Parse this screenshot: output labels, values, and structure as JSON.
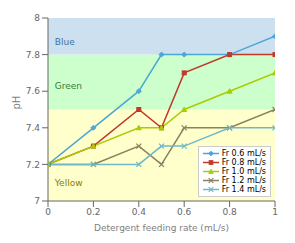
{
  "chart_data": {
    "type": "line",
    "xlabel": "Detergent feeding rate (mL/s)",
    "ylabel": "pH",
    "xlim": [
      0,
      1.0
    ],
    "ylim": [
      7.0,
      8.0
    ],
    "xticks": [
      0,
      0.2,
      0.4,
      0.6,
      0.8,
      1.0
    ],
    "yticks": [
      7.0,
      7.2,
      7.4,
      7.6,
      7.8,
      8.0
    ],
    "grid": false,
    "legend": "lower right",
    "x": [
      0,
      0.2,
      0.4,
      0.5,
      0.6,
      0.8,
      1.0
    ],
    "series": [
      {
        "name": "Fr 0.6 mL/s",
        "color": "#4da6d6",
        "marker": "diamond",
        "values": [
          7.2,
          7.4,
          7.6,
          7.8,
          7.8,
          7.8,
          7.9
        ]
      },
      {
        "name": "Fr 0.8 mL/s",
        "color": "#c0392b",
        "marker": "square",
        "values": [
          7.2,
          7.3,
          7.5,
          7.4,
          7.7,
          7.8,
          7.8
        ]
      },
      {
        "name": "Fr 1.0 mL/s",
        "color": "#aacc00",
        "marker": "triangle",
        "values": [
          7.2,
          7.3,
          7.4,
          7.4,
          7.5,
          7.6,
          7.7
        ]
      },
      {
        "name": "Fr 1.2 mL/s",
        "color": "#8B8060",
        "marker": "x",
        "values": [
          7.2,
          7.2,
          7.3,
          7.2,
          7.4,
          7.4,
          7.5
        ]
      },
      {
        "name": "Fr 1.4 mL/s",
        "color": "#70b8c8",
        "marker": "x",
        "values": [
          7.2,
          7.2,
          7.2,
          7.3,
          7.3,
          7.4,
          7.4
        ]
      }
    ],
    "zones": [
      {
        "ymin": 7.0,
        "ymax": 7.5,
        "color": "#ffffcc"
      },
      {
        "ymin": 7.5,
        "ymax": 7.8,
        "color": "#ccffcc"
      },
      {
        "ymin": 7.8,
        "ymax": 8.0,
        "color": "#cce0f0"
      }
    ],
    "annotations": [
      {
        "text": "Blue",
        "x": 0.03,
        "y": 7.87,
        "color": "#4472a0"
      },
      {
        "text": "Green",
        "x": 0.03,
        "y": 7.63,
        "color": "#3a7a3a"
      },
      {
        "text": "Yellow",
        "x": 0.03,
        "y": 7.1,
        "color": "#8a7a00"
      }
    ]
  }
}
